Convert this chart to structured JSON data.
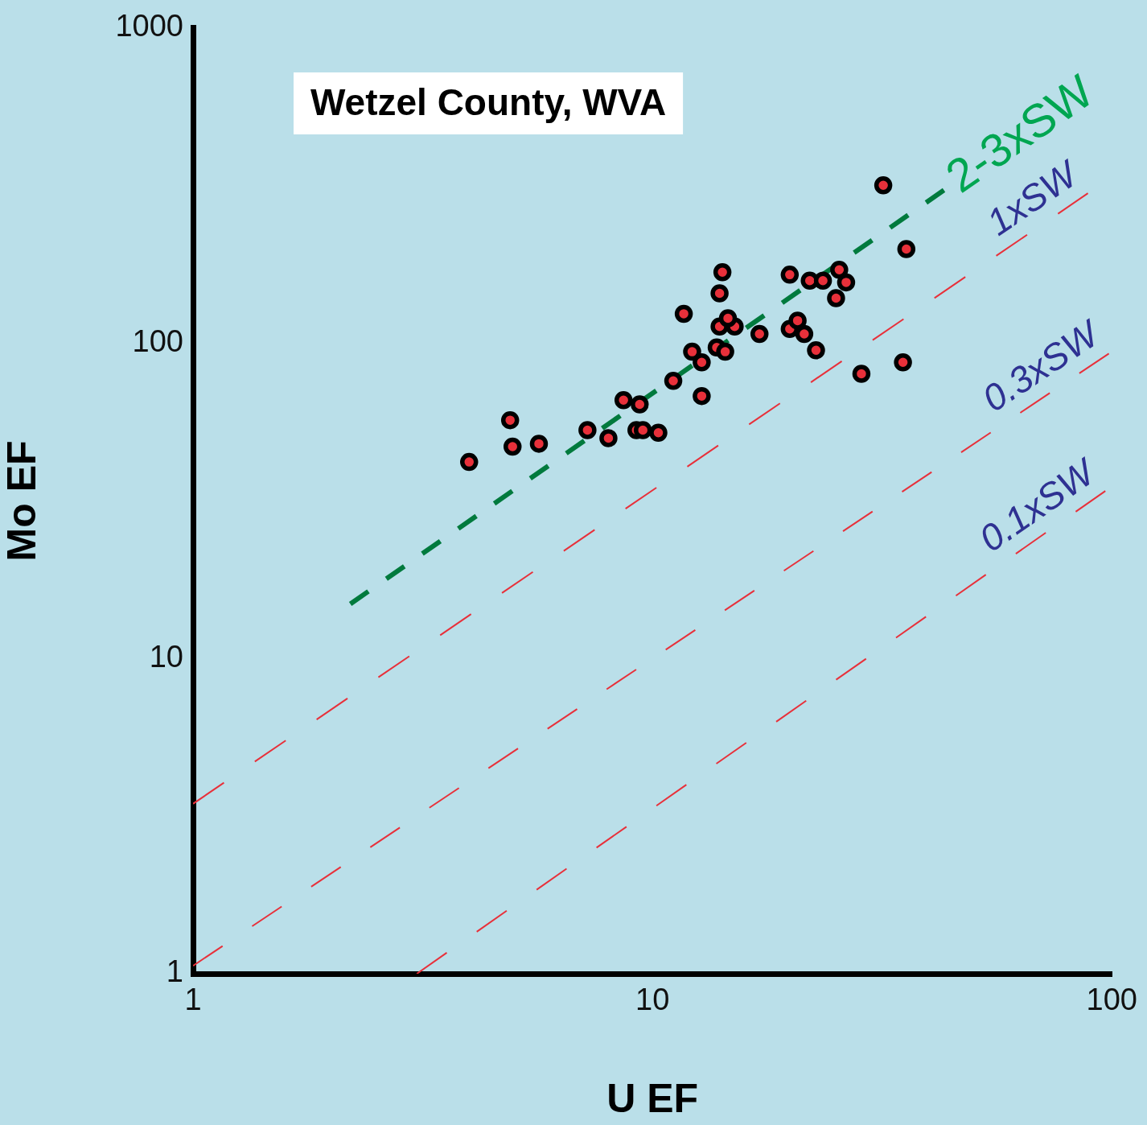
{
  "chart_data": {
    "type": "scatter",
    "title": "Wetzel County, WVA",
    "xlabel": "U EF",
    "ylabel": "Mo EF",
    "log": "xy",
    "xlim": [
      1,
      100
    ],
    "ylim": [
      1,
      1000
    ],
    "xticks": [
      1,
      10,
      100
    ],
    "yticks": [
      1,
      10,
      100,
      1000
    ],
    "grid": false,
    "legend": false,
    "series": [
      {
        "color": "#000000",
        "marker": "circle",
        "x": [
          3.99,
          4.9,
          4.96,
          5.66,
          7.22,
          8.02,
          8.65,
          9.38,
          9.23,
          9.53,
          10.3,
          11.1,
          11.7,
          12.2,
          12.8,
          12.8,
          13.8,
          14.4,
          14.0,
          15.1,
          14.6,
          14.0,
          14.2,
          17.1,
          19.9,
          20.7,
          21.4,
          22.7,
          19.9,
          22.0,
          23.5,
          25.5,
          26.4,
          25.1,
          28.5,
          31.8,
          35.7,
          35.1
        ],
        "values": [
          42,
          57,
          47,
          48,
          53,
          50,
          66,
          64,
          53,
          53,
          52,
          76,
          124,
          94,
          87,
          68,
          97,
          94,
          113,
          113,
          120,
          144,
          168,
          107,
          111,
          118,
          107,
          95,
          165,
          158,
          158,
          171,
          156,
          139,
          80,
          317,
          199,
          87
        ]
      },
      {
        "type": "line",
        "name": "2-3xSW",
        "color": "#007a3d",
        "line_style": "dashed",
        "x": [
          2.2,
          43.1
        ],
        "values": [
          14.9,
          306
        ]
      },
      {
        "type": "line",
        "name": "1xSW",
        "color": "#e8303a",
        "line_style": "dashed",
        "x": [
          1,
          88.7
        ],
        "values": [
          3.46,
          299
        ]
      },
      {
        "type": "line",
        "name": "0.3xSW",
        "color": "#e8303a",
        "line_style": "dashed",
        "x": [
          1,
          98.8
        ],
        "values": [
          1.06,
          93
        ]
      },
      {
        "type": "line",
        "name": "0.1xSW",
        "color": "#e8303a",
        "line_style": "dashed",
        "x": [
          3.07,
          96.8
        ],
        "values": [
          1,
          34
        ]
      }
    ]
  }
}
